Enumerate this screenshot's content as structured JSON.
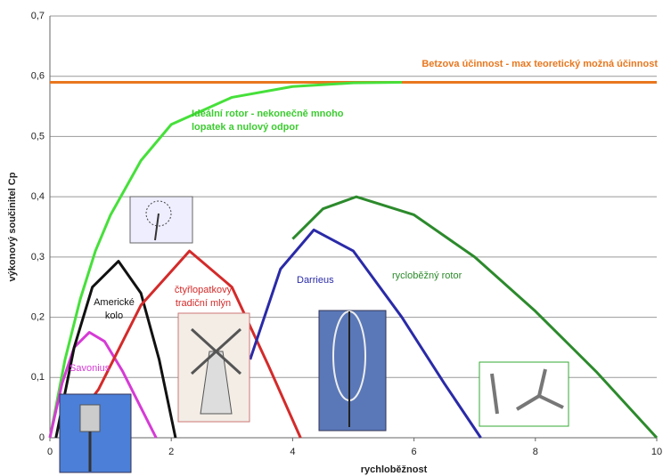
{
  "chart_data": {
    "type": "line",
    "xlabel": "rychloběžnost",
    "ylabel": "výkonový součinitel Cp",
    "xlim": [
      0,
      10
    ],
    "xticks": [
      0,
      2,
      4,
      6,
      8,
      10
    ],
    "ylim": [
      0,
      0.7
    ],
    "yticks": [
      {
        "value": 0,
        "label": "0"
      },
      {
        "value": 0.1,
        "label": "0,1"
      },
      {
        "value": 0.2,
        "label": "0,2"
      },
      {
        "value": 0.3,
        "label": "0,3"
      },
      {
        "value": 0.4,
        "label": "0,4"
      },
      {
        "value": 0.5,
        "label": "0,5"
      },
      {
        "value": 0.6,
        "label": "0,6"
      },
      {
        "value": 0.7,
        "label": "0,7"
      }
    ],
    "grid": true,
    "series": [
      {
        "color": "#e8771e",
        "x": [
          0,
          10
        ],
        "values": [
          0.59,
          0.59
        ]
      },
      {
        "color": "#46e03a",
        "x": [
          0,
          0.25,
          0.5,
          0.75,
          1,
          1.5,
          2,
          3,
          4,
          5,
          5.8
        ],
        "values": [
          0,
          0.13,
          0.23,
          0.31,
          0.37,
          0.46,
          0.52,
          0.565,
          0.583,
          0.589,
          0.59
        ]
      },
      {
        "color": "#d63ad6",
        "x": [
          0,
          0.2,
          0.4,
          0.65,
          0.9,
          1.2,
          1.5,
          1.75
        ],
        "values": [
          0,
          0.09,
          0.15,
          0.175,
          0.16,
          0.11,
          0.05,
          0
        ]
      },
      {
        "color": "#111111",
        "x": [
          0.1,
          0.4,
          0.7,
          1.13,
          1.5,
          1.8,
          2.07
        ],
        "values": [
          0,
          0.15,
          0.25,
          0.293,
          0.24,
          0.13,
          0
        ]
      },
      {
        "color": "#d42a2a",
        "x": [
          0.2,
          0.8,
          1.5,
          2.3,
          3,
          3.6,
          4.13
        ],
        "values": [
          0,
          0.08,
          0.22,
          0.31,
          0.25,
          0.12,
          0
        ]
      },
      {
        "color": "#2a2aa8",
        "x": [
          3.3,
          3.8,
          4.35,
          5,
          5.8,
          6.5,
          7.1
        ],
        "values": [
          0.13,
          0.28,
          0.345,
          0.31,
          0.2,
          0.09,
          0
        ]
      },
      {
        "color": "#2c8a2c",
        "x": [
          4,
          4.5,
          5.05,
          6,
          7,
          8,
          9,
          10
        ],
        "values": [
          0.33,
          0.38,
          0.4,
          0.37,
          0.3,
          0.21,
          0.11,
          0
        ]
      }
    ],
    "annotations": [
      {
        "lines": [
          "Betzova účinnost - max teoretický možná účinnost"
        ],
        "color": "#e8771e"
      },
      {
        "lines": [
          "Ideální rotor - nekonečně mnoho",
          "lopatek a nulový odpor"
        ],
        "color": "#3ccc30"
      },
      {
        "lines": [
          "Savonius"
        ],
        "color": "#d63ad6"
      },
      {
        "lines": [
          "Americké",
          "kolo"
        ],
        "color": "#111111"
      },
      {
        "lines": [
          "čtyřlopatkový",
          "tradiční mlýn"
        ],
        "color": "#d42a2a"
      },
      {
        "lines": [
          "Darrieus"
        ],
        "color": "#2a2aa8"
      },
      {
        "lines": [
          "rycloběžný rotor"
        ],
        "color": "#2c8a2c"
      }
    ]
  }
}
